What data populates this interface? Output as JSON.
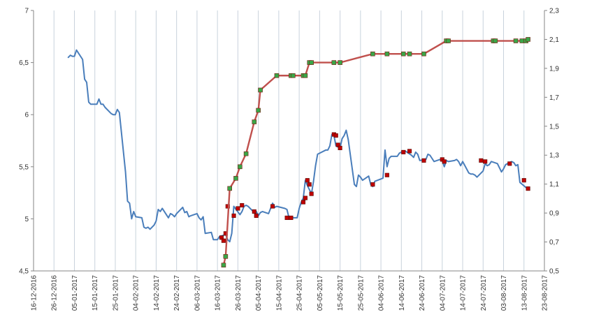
{
  "chart_data": {
    "type": "line",
    "x_axis": {
      "type": "date",
      "tick_labels": [
        "16-12-2016",
        "26-12-2016",
        "05-01-2017",
        "15-01-2017",
        "25-01-2017",
        "04-02-2017",
        "14-02-2017",
        "24-02-2017",
        "06-03-2017",
        "16-03-2017",
        "26-03-2017",
        "05-04-2017",
        "15-04-2017",
        "25-04-2017",
        "05-05-2017",
        "15-05-2017",
        "25-05-2017",
        "04-06-2017",
        "14-06-2017",
        "24-06-2017",
        "04-07-2017",
        "14-07-2017",
        "24-07-2017",
        "03-08-2017",
        "13-08-2017",
        "23-08-2017"
      ],
      "range": [
        "2016-12-16",
        "2017-08-23"
      ],
      "gridlines": "vertical at each tick"
    },
    "y_left": {
      "min": 4.5,
      "max": 7,
      "tick_labels": [
        "4,5",
        "5",
        "5,5",
        "6",
        "6,5",
        "7"
      ]
    },
    "y_right": {
      "min": 0.5,
      "max": 2.3,
      "tick_labels": [
        "0,5",
        "0,7",
        "0,9",
        "1,1",
        "1,3",
        "1,5",
        "1,7",
        "1,9",
        "2,1",
        "2,3"
      ]
    },
    "series": [
      {
        "axis": "left",
        "style": "line",
        "color": "#4a7ebb",
        "points": [
          [
            "2017-01-02",
            6.55
          ],
          [
            "2017-01-03",
            6.57
          ],
          [
            "2017-01-04",
            6.56
          ],
          [
            "2017-01-05",
            6.56
          ],
          [
            "2017-01-06",
            6.62
          ],
          [
            "2017-01-07",
            6.59
          ],
          [
            "2017-01-09",
            6.53
          ],
          [
            "2017-01-10",
            6.34
          ],
          [
            "2017-01-11",
            6.31
          ],
          [
            "2017-01-12",
            6.12
          ],
          [
            "2017-01-13",
            6.1
          ],
          [
            "2017-01-16",
            6.1
          ],
          [
            "2017-01-17",
            6.15
          ],
          [
            "2017-01-18",
            6.1
          ],
          [
            "2017-01-19",
            6.1
          ],
          [
            "2017-01-20",
            6.07
          ],
          [
            "2017-01-23",
            6.01
          ],
          [
            "2017-01-24",
            6.0
          ],
          [
            "2017-01-25",
            6.0
          ],
          [
            "2017-01-26",
            6.05
          ],
          [
            "2017-01-27",
            6.02
          ],
          [
            "2017-01-30",
            5.45
          ],
          [
            "2017-01-31",
            5.17
          ],
          [
            "2017-02-01",
            5.15
          ],
          [
            "2017-02-02",
            5.0
          ],
          [
            "2017-02-03",
            5.07
          ],
          [
            "2017-02-04",
            5.02
          ],
          [
            "2017-02-07",
            5.01
          ],
          [
            "2017-02-08",
            4.92
          ],
          [
            "2017-02-09",
            4.91
          ],
          [
            "2017-02-10",
            4.92
          ],
          [
            "2017-02-11",
            4.9
          ],
          [
            "2017-02-13",
            4.94
          ],
          [
            "2017-02-14",
            4.98
          ],
          [
            "2017-02-15",
            5.09
          ],
          [
            "2017-02-16",
            5.07
          ],
          [
            "2017-02-17",
            5.1
          ],
          [
            "2017-02-20",
            5.01
          ],
          [
            "2017-02-21",
            5.05
          ],
          [
            "2017-02-22",
            5.04
          ],
          [
            "2017-02-23",
            5.02
          ],
          [
            "2017-02-24",
            5.05
          ],
          [
            "2017-02-27",
            5.11
          ],
          [
            "2017-02-28",
            5.06
          ],
          [
            "2017-03-01",
            5.07
          ],
          [
            "2017-03-02",
            5.02
          ],
          [
            "2017-03-03",
            5.03
          ],
          [
            "2017-03-06",
            5.05
          ],
          [
            "2017-03-07",
            5.01
          ],
          [
            "2017-03-08",
            4.99
          ],
          [
            "2017-03-09",
            5.02
          ],
          [
            "2017-03-10",
            4.86
          ],
          [
            "2017-03-13",
            4.87
          ],
          [
            "2017-03-14",
            4.8
          ],
          [
            "2017-03-15",
            4.8
          ],
          [
            "2017-03-16",
            4.8
          ],
          [
            "2017-03-17",
            4.83
          ],
          [
            "2017-03-20",
            4.85
          ],
          [
            "2017-03-21",
            4.8
          ],
          [
            "2017-03-22",
            4.78
          ],
          [
            "2017-03-23",
            4.86
          ],
          [
            "2017-03-24",
            5.12
          ],
          [
            "2017-03-27",
            5.04
          ],
          [
            "2017-03-28",
            5.07
          ],
          [
            "2017-03-29",
            5.12
          ],
          [
            "2017-03-30",
            5.13
          ],
          [
            "2017-03-31",
            5.12
          ],
          [
            "2017-04-03",
            5.06
          ],
          [
            "2017-04-04",
            5.07
          ],
          [
            "2017-04-05",
            5.03
          ],
          [
            "2017-04-06",
            5.06
          ],
          [
            "2017-04-07",
            5.07
          ],
          [
            "2017-04-10",
            5.05
          ],
          [
            "2017-04-11",
            5.1
          ],
          [
            "2017-04-12",
            5.15
          ],
          [
            "2017-04-13",
            5.11
          ],
          [
            "2017-04-14",
            5.12
          ],
          [
            "2017-04-18",
            5.1
          ],
          [
            "2017-04-19",
            5.09
          ],
          [
            "2017-04-20",
            5.01
          ],
          [
            "2017-04-21",
            5.01
          ],
          [
            "2017-04-24",
            5.01
          ],
          [
            "2017-04-25",
            5.1
          ],
          [
            "2017-04-26",
            5.16
          ],
          [
            "2017-04-27",
            5.2
          ],
          [
            "2017-04-28",
            5.37
          ],
          [
            "2017-04-29",
            5.32
          ],
          [
            "2017-05-01",
            5.24
          ],
          [
            "2017-05-02",
            5.36
          ],
          [
            "2017-05-03",
            5.51
          ],
          [
            "2017-05-04",
            5.62
          ],
          [
            "2017-05-05",
            5.63
          ],
          [
            "2017-05-08",
            5.66
          ],
          [
            "2017-05-09",
            5.66
          ],
          [
            "2017-05-10",
            5.7
          ],
          [
            "2017-05-11",
            5.81
          ],
          [
            "2017-05-12",
            5.8
          ],
          [
            "2017-05-13",
            5.7
          ],
          [
            "2017-05-15",
            5.68
          ],
          [
            "2017-05-16",
            5.77
          ],
          [
            "2017-05-17",
            5.8
          ],
          [
            "2017-05-18",
            5.85
          ],
          [
            "2017-05-19",
            5.76
          ],
          [
            "2017-05-22",
            5.33
          ],
          [
            "2017-05-23",
            5.31
          ],
          [
            "2017-05-24",
            5.42
          ],
          [
            "2017-05-25",
            5.4
          ],
          [
            "2017-05-26",
            5.37
          ],
          [
            "2017-05-29",
            5.41
          ],
          [
            "2017-05-30",
            5.33
          ],
          [
            "2017-05-31",
            5.31
          ],
          [
            "2017-06-01",
            5.36
          ],
          [
            "2017-06-05",
            5.39
          ],
          [
            "2017-06-06",
            5.66
          ],
          [
            "2017-06-07",
            5.5
          ],
          [
            "2017-06-08",
            5.58
          ],
          [
            "2017-06-09",
            5.6
          ],
          [
            "2017-06-12",
            5.6
          ],
          [
            "2017-06-13",
            5.63
          ],
          [
            "2017-06-14",
            5.64
          ],
          [
            "2017-06-15",
            5.64
          ],
          [
            "2017-06-16",
            5.65
          ],
          [
            "2017-06-19",
            5.61
          ],
          [
            "2017-06-20",
            5.59
          ],
          [
            "2017-06-21",
            5.64
          ],
          [
            "2017-06-22",
            5.62
          ],
          [
            "2017-06-23",
            5.56
          ],
          [
            "2017-06-26",
            5.57
          ],
          [
            "2017-06-27",
            5.62
          ],
          [
            "2017-06-28",
            5.61
          ],
          [
            "2017-06-29",
            5.58
          ],
          [
            "2017-06-30",
            5.55
          ],
          [
            "2017-07-03",
            5.57
          ],
          [
            "2017-07-04",
            5.56
          ],
          [
            "2017-07-05",
            5.5
          ],
          [
            "2017-07-06",
            5.56
          ],
          [
            "2017-07-07",
            5.55
          ],
          [
            "2017-07-10",
            5.56
          ],
          [
            "2017-07-11",
            5.57
          ],
          [
            "2017-07-12",
            5.55
          ],
          [
            "2017-07-13",
            5.51
          ],
          [
            "2017-07-14",
            5.55
          ],
          [
            "2017-07-17",
            5.44
          ],
          [
            "2017-07-18",
            5.43
          ],
          [
            "2017-07-19",
            5.43
          ],
          [
            "2017-07-20",
            5.42
          ],
          [
            "2017-07-21",
            5.4
          ],
          [
            "2017-07-24",
            5.46
          ],
          [
            "2017-07-25",
            5.53
          ],
          [
            "2017-07-26",
            5.51
          ],
          [
            "2017-07-27",
            5.52
          ],
          [
            "2017-07-28",
            5.55
          ],
          [
            "2017-07-31",
            5.53
          ],
          [
            "2017-08-01",
            5.49
          ],
          [
            "2017-08-02",
            5.45
          ],
          [
            "2017-08-03",
            5.48
          ],
          [
            "2017-08-04",
            5.52
          ],
          [
            "2017-08-07",
            5.55
          ],
          [
            "2017-08-08",
            5.54
          ],
          [
            "2017-08-09",
            5.51
          ],
          [
            "2017-08-10",
            5.52
          ],
          [
            "2017-08-11",
            5.35
          ],
          [
            "2017-08-14",
            5.3
          ]
        ]
      },
      {
        "axis": "left",
        "style": "markers",
        "color": "#c00000",
        "points": [
          [
            "2017-03-18",
            4.82
          ],
          [
            "2017-03-19",
            4.79
          ],
          [
            "2017-03-20",
            4.86
          ],
          [
            "2017-03-21",
            5.12
          ],
          [
            "2017-03-24",
            5.03
          ],
          [
            "2017-03-26",
            5.1
          ],
          [
            "2017-03-28",
            5.13
          ],
          [
            "2017-04-03",
            5.07
          ],
          [
            "2017-04-04",
            5.03
          ],
          [
            "2017-04-12",
            5.12
          ],
          [
            "2017-04-19",
            5.01
          ],
          [
            "2017-04-21",
            5.01
          ],
          [
            "2017-04-27",
            5.16
          ],
          [
            "2017-04-28",
            5.2
          ],
          [
            "2017-04-29",
            5.37
          ],
          [
            "2017-04-30",
            5.33
          ],
          [
            "2017-05-01",
            5.24
          ],
          [
            "2017-05-12",
            5.81
          ],
          [
            "2017-05-13",
            5.8
          ],
          [
            "2017-05-14",
            5.71
          ],
          [
            "2017-05-15",
            5.68
          ],
          [
            "2017-05-31",
            5.33
          ],
          [
            "2017-06-07",
            5.42
          ],
          [
            "2017-06-15",
            5.64
          ],
          [
            "2017-06-18",
            5.65
          ],
          [
            "2017-06-25",
            5.56
          ],
          [
            "2017-07-04",
            5.57
          ],
          [
            "2017-07-05",
            5.55
          ],
          [
            "2017-07-23",
            5.56
          ],
          [
            "2017-07-25",
            5.55
          ],
          [
            "2017-08-06",
            5.53
          ],
          [
            "2017-08-13",
            5.37
          ],
          [
            "2017-08-15",
            5.29
          ]
        ]
      },
      {
        "axis": "right",
        "style": "line+markers",
        "color": "#c0504d",
        "marker_color": "#3aa648",
        "points": [
          [
            "2017-03-19",
            0.54
          ],
          [
            "2017-03-20",
            0.6
          ],
          [
            "2017-03-22",
            1.07
          ],
          [
            "2017-03-25",
            1.14
          ],
          [
            "2017-03-27",
            1.22
          ],
          [
            "2017-03-30",
            1.31
          ],
          [
            "2017-04-03",
            1.53
          ],
          [
            "2017-04-05",
            1.61
          ],
          [
            "2017-04-06",
            1.75
          ],
          [
            "2017-04-14",
            1.85
          ],
          [
            "2017-04-21",
            1.85
          ],
          [
            "2017-04-22",
            1.85
          ],
          [
            "2017-04-27",
            1.85
          ],
          [
            "2017-04-28",
            1.85
          ],
          [
            "2017-04-30",
            1.94
          ],
          [
            "2017-05-01",
            1.94
          ],
          [
            "2017-05-12",
            1.94
          ],
          [
            "2017-05-15",
            1.94
          ],
          [
            "2017-05-31",
            2.0
          ],
          [
            "2017-06-07",
            2.0
          ],
          [
            "2017-06-15",
            2.0
          ],
          [
            "2017-06-18",
            2.0
          ],
          [
            "2017-06-25",
            2.0
          ],
          [
            "2017-07-06",
            2.09
          ],
          [
            "2017-07-07",
            2.09
          ],
          [
            "2017-07-29",
            2.09
          ],
          [
            "2017-07-30",
            2.09
          ],
          [
            "2017-08-09",
            2.09
          ],
          [
            "2017-08-12",
            2.09
          ],
          [
            "2017-08-14",
            2.09
          ],
          [
            "2017-08-15",
            2.1
          ]
        ]
      }
    ]
  }
}
